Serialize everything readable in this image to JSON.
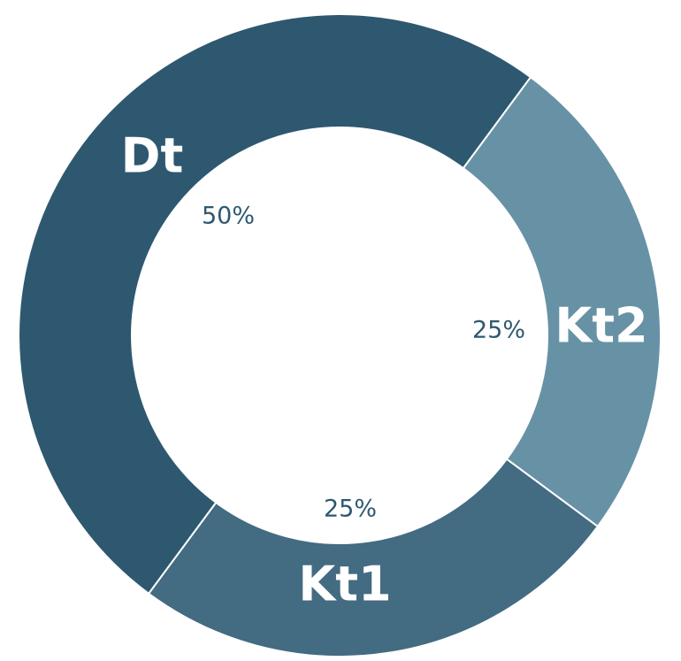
{
  "chart_data": {
    "type": "pie",
    "donut": true,
    "slices": [
      {
        "label": "Dt",
        "value": 50,
        "value_label": "50%",
        "color": "#2e5870"
      },
      {
        "label": "Kt1",
        "value": 25,
        "value_label": "25%",
        "color": "#436b82"
      },
      {
        "label": "Kt2",
        "value": 25,
        "value_label": "25%",
        "color": "#6792a6"
      }
    ],
    "value_label_color": "#2e5870",
    "legend": "none",
    "title": ""
  }
}
